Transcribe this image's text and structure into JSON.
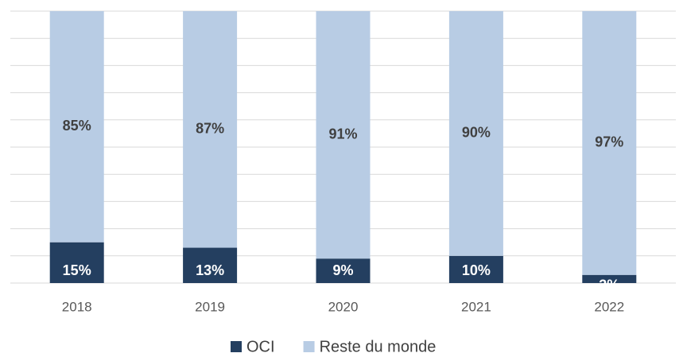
{
  "chart_data": {
    "type": "bar",
    "stacked": true,
    "categories": [
      "2018",
      "2019",
      "2020",
      "2021",
      "2022"
    ],
    "series": [
      {
        "name": "OCI",
        "color": "#243f60",
        "values": [
          15,
          13,
          9,
          10,
          3
        ],
        "value_labels": [
          "15%",
          "13%",
          "9%",
          "10%",
          "3%"
        ]
      },
      {
        "name": "Reste du monde",
        "color": "#b8cce4",
        "values": [
          85,
          87,
          91,
          90,
          97
        ],
        "value_labels": [
          "85%",
          "87%",
          "91%",
          "90%",
          "97%"
        ]
      }
    ],
    "ylim": [
      0,
      100
    ],
    "yticks": [
      0,
      10,
      20,
      30,
      40,
      50,
      60,
      70,
      80,
      90,
      100
    ],
    "grid": true,
    "legend": "bottom"
  }
}
